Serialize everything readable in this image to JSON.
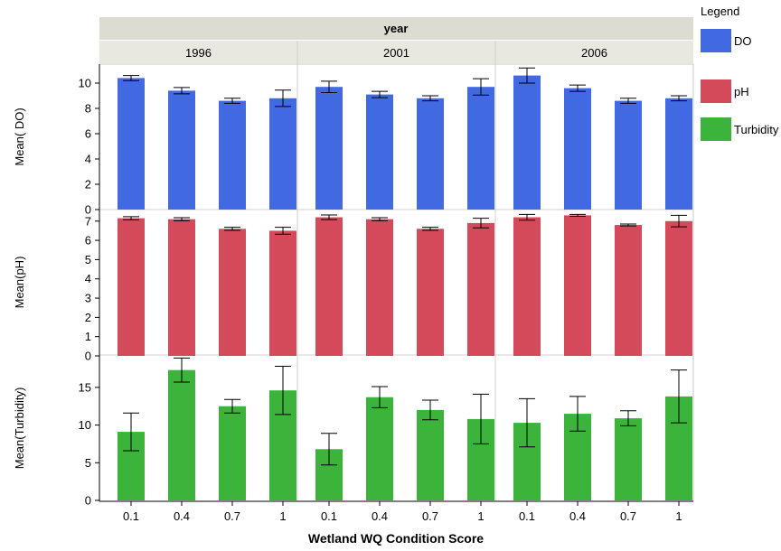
{
  "chart_data": {
    "type": "bar",
    "facet_title": "year",
    "facets": [
      "1996",
      "2001",
      "2006"
    ],
    "categories": [
      "0.1",
      "0.4",
      "0.7",
      "1"
    ],
    "xlabel": "Wetland WQ Condition Score",
    "legend": {
      "title": "Legend",
      "placement": "right",
      "items": [
        {
          "label": "DO",
          "color": "#4169e1"
        },
        {
          "label": "pH",
          "color": "#d44a5a"
        },
        {
          "label": "Turbidity",
          "color": "#3cb43c"
        }
      ]
    },
    "panels": [
      {
        "ylabel": "Mean( DO)",
        "series": "DO",
        "ylim": [
          0,
          11.5
        ],
        "yticks": [
          0,
          2,
          4,
          6,
          8,
          10
        ],
        "values": {
          "1996": [
            10.4,
            9.4,
            8.6,
            8.8
          ],
          "2001": [
            9.7,
            9.1,
            8.8,
            9.7
          ],
          "2006": [
            10.6,
            9.6,
            8.6,
            8.8
          ]
        },
        "errors": {
          "1996": [
            0.2,
            0.25,
            0.2,
            0.65
          ],
          "2001": [
            0.45,
            0.25,
            0.2,
            0.65
          ],
          "2006": [
            0.6,
            0.25,
            0.2,
            0.2
          ]
        }
      },
      {
        "ylabel": "Mean(pH)",
        "series": "pH",
        "ylim": [
          0,
          7.6
        ],
        "yticks": [
          0,
          1,
          2,
          3,
          4,
          5,
          6,
          7
        ],
        "values": {
          "1996": [
            7.15,
            7.1,
            6.6,
            6.5
          ],
          "2001": [
            7.2,
            7.1,
            6.6,
            6.9
          ],
          "2006": [
            7.2,
            7.3,
            6.8,
            7.0
          ]
        },
        "errors": {
          "1996": [
            0.08,
            0.08,
            0.08,
            0.18
          ],
          "2001": [
            0.12,
            0.08,
            0.08,
            0.25
          ],
          "2006": [
            0.15,
            0.05,
            0.05,
            0.3
          ]
        }
      },
      {
        "ylabel": "Mean(Turbidity)",
        "series": "Turbidity",
        "ylim": [
          0,
          19.3
        ],
        "yticks": [
          0,
          5,
          10,
          15
        ],
        "values": {
          "1996": [
            9.1,
            17.3,
            12.5,
            14.6
          ],
          "2001": [
            6.8,
            13.7,
            12.0,
            10.8
          ],
          "2006": [
            10.3,
            11.5,
            10.9,
            13.8
          ]
        },
        "errors": {
          "1996": [
            2.5,
            1.6,
            0.9,
            3.2
          ],
          "2001": [
            2.1,
            1.4,
            1.3,
            3.3
          ],
          "2006": [
            3.2,
            2.3,
            1.0,
            3.5
          ]
        }
      }
    ]
  }
}
